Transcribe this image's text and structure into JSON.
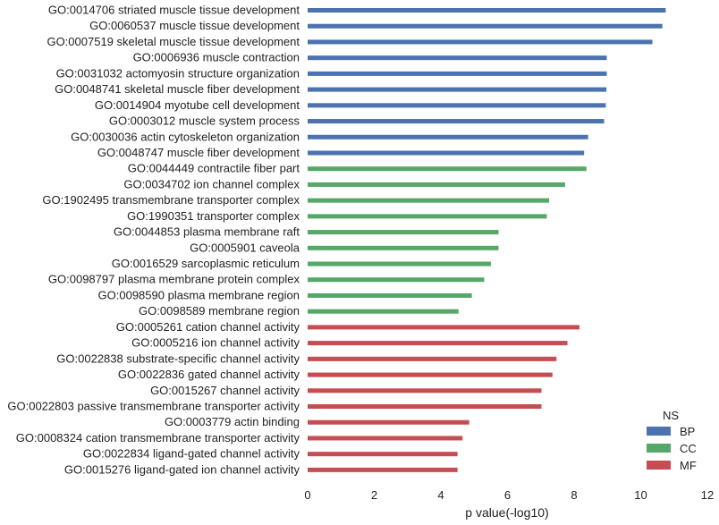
{
  "chart_data": {
    "type": "bar",
    "orientation": "horizontal",
    "title": "",
    "xlabel": "p value(-log10)",
    "ylabel": "",
    "xlim": [
      0,
      12
    ],
    "xticks": [
      "0",
      "2",
      "4",
      "6",
      "8",
      "10",
      "12"
    ],
    "grid": false,
    "legend": {
      "title": "NS",
      "placement": "lower-right",
      "entries": [
        {
          "name": "BP",
          "color": "#4c72b0"
        },
        {
          "name": "CC",
          "color": "#55a868"
        },
        {
          "name": "MF",
          "color": "#c44e52"
        }
      ]
    },
    "bars": [
      {
        "category": "GO:0014706 striated muscle tissue development",
        "value": 10.75,
        "group": "BP"
      },
      {
        "category": "GO:0060537 muscle tissue development",
        "value": 10.65,
        "group": "BP"
      },
      {
        "category": "GO:0007519 skeletal muscle tissue development",
        "value": 10.35,
        "group": "BP"
      },
      {
        "category": "GO:0006936 muscle contraction",
        "value": 8.98,
        "group": "BP"
      },
      {
        "category": "GO:0031032 actomyosin structure organization",
        "value": 8.98,
        "group": "BP"
      },
      {
        "category": "GO:0048741 skeletal muscle fiber development",
        "value": 8.97,
        "group": "BP"
      },
      {
        "category": "GO:0014904 myotube cell development",
        "value": 8.95,
        "group": "BP"
      },
      {
        "category": "GO:0003012 muscle system process",
        "value": 8.9,
        "group": "BP"
      },
      {
        "category": "GO:0030036 actin cytoskeleton organization",
        "value": 8.42,
        "group": "BP"
      },
      {
        "category": "GO:0048747 muscle fiber development",
        "value": 8.3,
        "group": "BP"
      },
      {
        "category": "GO:0044449 contractile fiber part",
        "value": 8.37,
        "group": "CC"
      },
      {
        "category": "GO:0034702 ion channel complex",
        "value": 7.73,
        "group": "CC"
      },
      {
        "category": "GO:1902495 transmembrane transporter complex",
        "value": 7.25,
        "group": "CC"
      },
      {
        "category": "GO:1990351 transporter complex",
        "value": 7.18,
        "group": "CC"
      },
      {
        "category": "GO:0044853 plasma membrane raft",
        "value": 5.73,
        "group": "CC"
      },
      {
        "category": "GO:0005901 caveola",
        "value": 5.73,
        "group": "CC"
      },
      {
        "category": "GO:0016529 sarcoplasmic reticulum",
        "value": 5.5,
        "group": "CC"
      },
      {
        "category": "GO:0098797 plasma membrane protein complex",
        "value": 5.3,
        "group": "CC"
      },
      {
        "category": "GO:0098590 plasma membrane region",
        "value": 4.93,
        "group": "CC"
      },
      {
        "category": "GO:0098589 membrane region",
        "value": 4.53,
        "group": "CC"
      },
      {
        "category": "GO:0005261 cation channel activity",
        "value": 8.16,
        "group": "MF"
      },
      {
        "category": "GO:0005216 ion channel activity",
        "value": 7.8,
        "group": "MF"
      },
      {
        "category": "GO:0022838 substrate-specific channel activity",
        "value": 7.47,
        "group": "MF"
      },
      {
        "category": "GO:0022836 gated channel activity",
        "value": 7.35,
        "group": "MF"
      },
      {
        "category": "GO:0015267 channel activity",
        "value": 7.02,
        "group": "MF"
      },
      {
        "category": "GO:0022803 passive transmembrane transporter activity",
        "value": 7.02,
        "group": "MF"
      },
      {
        "category": "GO:0003779 actin binding",
        "value": 4.85,
        "group": "MF"
      },
      {
        "category": "GO:0008324 cation transmembrane transporter activity",
        "value": 4.65,
        "group": "MF"
      },
      {
        "category": "GO:0022834 ligand-gated channel activity",
        "value": 4.5,
        "group": "MF"
      },
      {
        "category": "GO:0015276 ligand-gated ion channel activity",
        "value": 4.5,
        "group": "MF"
      }
    ]
  }
}
